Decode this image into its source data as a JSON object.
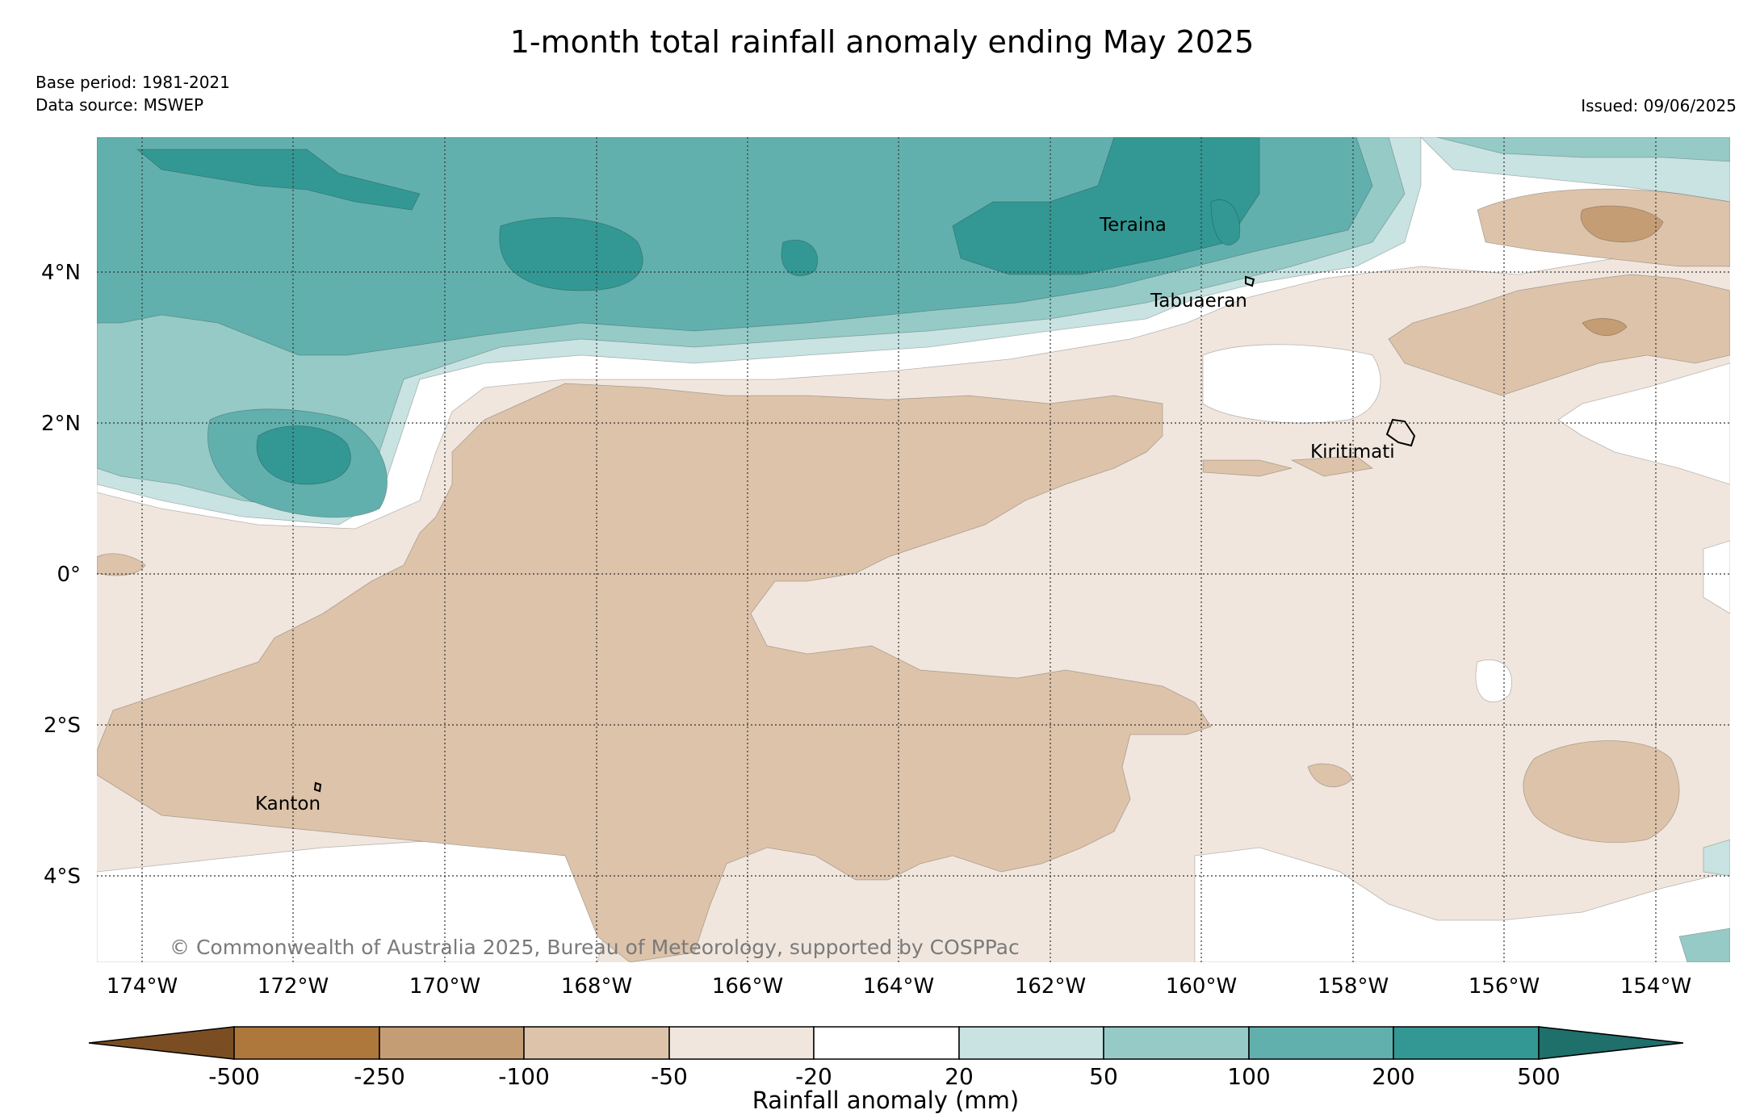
{
  "title": "1-month total rainfall anomaly ending May 2025",
  "base_period": "Base period: 1981-2021",
  "data_source": "Data source: MSWEP",
  "issued": "Issued: 09/06/2025",
  "copyright": "© Commonwealth of Australia 2025, Bureau of Meteorology, supported by COSPPac",
  "colors": {
    "lt_neg500": "#7a4e22",
    "neg500_neg250": "#ae773c",
    "neg250_neg100": "#c59d74",
    "neg100_neg50": "#dcc3aa",
    "neg50_neg20": "#f0e6dd",
    "neg20_20": "#ffffff",
    "p20_50": "#c8e3e1",
    "p50_100": "#95cac6",
    "p100_200": "#62b0ad",
    "p200_500": "#339893",
    "gt500": "#1f6f6b"
  },
  "map": {
    "lat_labels": [
      "4°N",
      "2°N",
      "0°",
      "2°S",
      "4°S"
    ],
    "lon_labels": [
      "174°W",
      "172°W",
      "170°W",
      "168°W",
      "166°W",
      "164°W",
      "162°W",
      "160°W",
      "158°W",
      "156°W",
      "154°W"
    ],
    "places": [
      "Teraina",
      "Tabuaeran",
      "Kiritimati",
      "Kanton"
    ]
  },
  "colorbar": {
    "ticks": [
      "-500",
      "-250",
      "-100",
      "-50",
      "-20",
      "20",
      "50",
      "100",
      "200",
      "500"
    ],
    "label": "Rainfall anomaly (mm)"
  }
}
